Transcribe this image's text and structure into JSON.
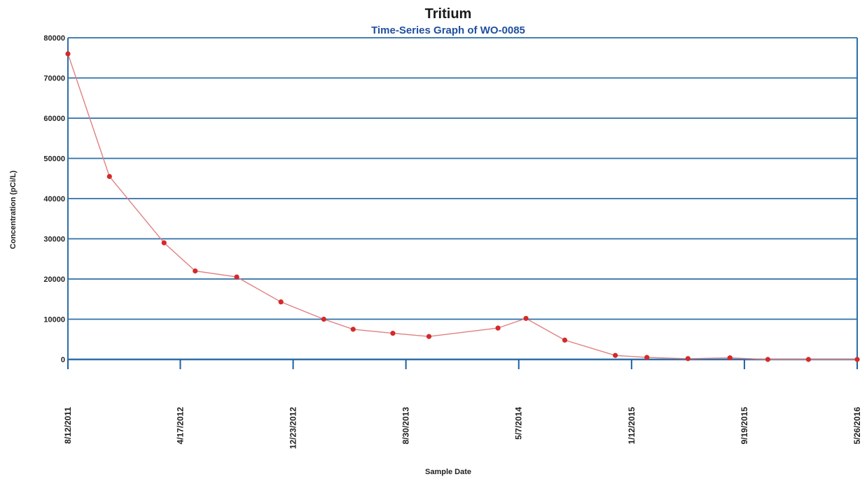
{
  "chart_data": {
    "type": "line",
    "title": "Tritium",
    "subtitle": "Time-Series Graph of WO-0085",
    "xlabel": "Sample Date",
    "ylabel": "Concentration (pCi/L)",
    "xlim": [
      "2011-08-12",
      "2016-05-26"
    ],
    "ylim": [
      0,
      80000
    ],
    "y_ticks": [
      0,
      10000,
      20000,
      30000,
      40000,
      50000,
      60000,
      70000,
      80000
    ],
    "y_tick_labels": [
      "0",
      "10000",
      "20000",
      "30000",
      "40000",
      "50000",
      "60000",
      "70000",
      "80000"
    ],
    "x_ticks": [
      "2011-08-12",
      "2012-04-17",
      "2012-12-23",
      "2013-08-30",
      "2014-05-07",
      "2015-01-12",
      "2015-09-19",
      "2016-05-26"
    ],
    "x_tick_labels": [
      "8/12/2011",
      "4/17/2012",
      "12/23/2012",
      "8/30/2013",
      "5/7/2014",
      "1/12/2015",
      "9/19/2015",
      "5/26/2016"
    ],
    "grid": true,
    "colors": {
      "grid": "#2c6fa8",
      "line": "#e08080",
      "marker": "#d42a2a",
      "ticks": "#1f5fa0",
      "subtitle": "#1f4fa0"
    },
    "series": [
      {
        "x": [
          "2011-08-12",
          "2011-11-12",
          "2012-03-12",
          "2012-05-20",
          "2012-08-20",
          "2012-11-26",
          "2013-03-01",
          "2013-05-05",
          "2013-08-01",
          "2013-10-20",
          "2014-03-22",
          "2014-05-23",
          "2014-08-17",
          "2014-12-07",
          "2015-02-15",
          "2015-05-17",
          "2015-08-18",
          "2015-11-10",
          "2016-02-08",
          "2016-05-26"
        ],
        "y": [
          76000,
          45500,
          29000,
          22000,
          20500,
          14300,
          10000,
          7500,
          6500,
          5700,
          7800,
          10200,
          4800,
          1000,
          500,
          200,
          400,
          0,
          0,
          0
        ]
      }
    ]
  }
}
